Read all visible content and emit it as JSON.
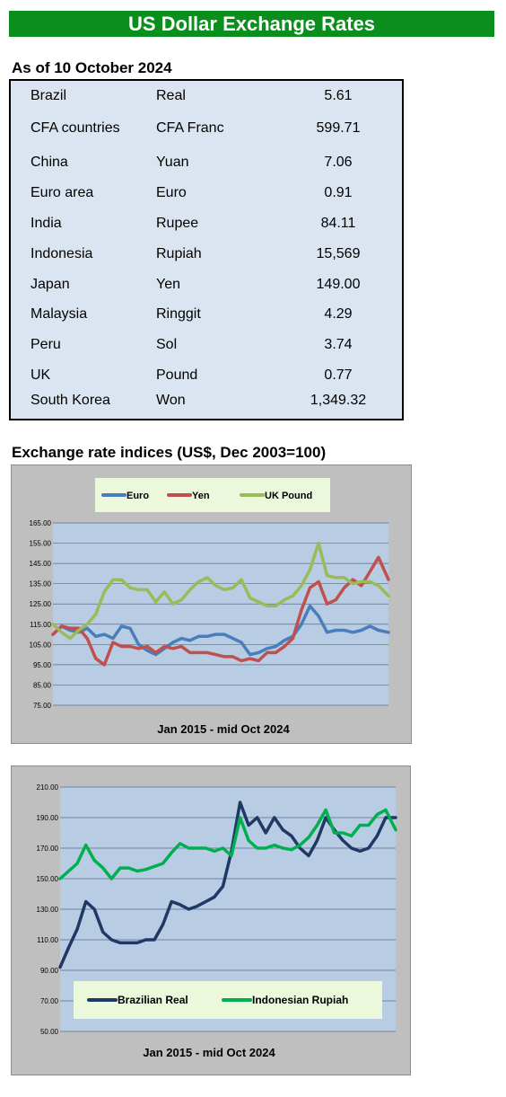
{
  "header": {
    "title": "US Dollar Exchange Rates"
  },
  "rates_section": {
    "as_of": "As of 10 October 2024",
    "rows": [
      {
        "country": "Brazil",
        "currency": "Real",
        "rate": "5.61"
      },
      {
        "country": "CFA countries",
        "currency": "CFA Franc",
        "rate": "599.71"
      },
      {
        "country": "China",
        "currency": "Yuan",
        "rate": "7.06"
      },
      {
        "country": "Euro area",
        "currency": "Euro",
        "rate": "0.91"
      },
      {
        "country": "India",
        "currency": "Rupee",
        "rate": "84.11"
      },
      {
        "country": "Indonesia",
        "currency": "Rupiah",
        "rate": "15,569"
      },
      {
        "country": "Japan",
        "currency": "Yen",
        "rate": "149.00"
      },
      {
        "country": "Malaysia",
        "currency": "Ringgit",
        "rate": "4.29"
      },
      {
        "country": "Peru",
        "currency": "Sol",
        "rate": "3.74"
      },
      {
        "country": "UK",
        "currency": "Pound",
        "rate": "0.77"
      },
      {
        "country": "South Korea",
        "currency": "Won",
        "rate": "1,349.32"
      }
    ]
  },
  "indices_section": {
    "title": "Exchange rate indices (US$, Dec 2003=100)"
  },
  "colors": {
    "banner": "#0a8f1e",
    "table_bg": "#dbe5f1",
    "panel_bg": "#bfbfbf",
    "plot_bg": "#b8cce4",
    "legend_bg": "#ebf8dc",
    "euro": "#4a7ebb",
    "yen": "#c0504d",
    "pound": "#9bbb59",
    "real": "#1f3864",
    "rupiah": "#00b050"
  },
  "chart_data": [
    {
      "type": "line",
      "xlabel": "Jan 2015 -  mid Oct 2024",
      "ylim": [
        75,
        165
      ],
      "yticks": [
        "75.00",
        "85.00",
        "95.00",
        "105.00",
        "115.00",
        "125.00",
        "135.00",
        "145.00",
        "155.00",
        "165.00"
      ],
      "grid": true,
      "legend": "top",
      "x": [
        2015.0,
        2015.25,
        2015.5,
        2015.75,
        2016.0,
        2016.25,
        2016.5,
        2016.75,
        2017.0,
        2017.25,
        2017.5,
        2017.75,
        2018.0,
        2018.25,
        2018.5,
        2018.75,
        2019.0,
        2019.25,
        2019.5,
        2019.75,
        2020.0,
        2020.25,
        2020.5,
        2020.75,
        2021.0,
        2021.25,
        2021.5,
        2021.75,
        2022.0,
        2022.25,
        2022.5,
        2022.75,
        2023.0,
        2023.25,
        2023.5,
        2023.75,
        2024.0,
        2024.25,
        2024.5,
        2024.79
      ],
      "series": [
        {
          "name": "Euro",
          "color": "#4a7ebb",
          "values": [
            110,
            114,
            112,
            111,
            113,
            109,
            110,
            108,
            114,
            113,
            105,
            102,
            100,
            103,
            106,
            108,
            107,
            109,
            109,
            110,
            110,
            108,
            106,
            100,
            101,
            103,
            104,
            107,
            109,
            115,
            124,
            119,
            111,
            112,
            112,
            111,
            112,
            114,
            112,
            111
          ]
        },
        {
          "name": "Yen",
          "color": "#c0504d",
          "values": [
            110,
            114,
            113,
            113,
            108,
            98,
            95,
            106,
            104,
            104,
            103,
            104,
            101,
            104,
            103,
            104,
            101,
            101,
            101,
            100,
            99,
            99,
            97,
            98,
            97,
            101,
            101,
            104,
            108,
            122,
            133,
            136,
            125,
            127,
            133,
            137,
            134,
            141,
            148,
            137
          ]
        },
        {
          "name": "UK Pound",
          "color": "#9bbb59",
          "values": [
            115,
            111,
            108,
            112,
            115,
            120,
            131,
            137,
            137,
            133,
            132,
            132,
            126,
            131,
            125,
            127,
            132,
            136,
            138,
            134,
            132,
            133,
            137,
            128,
            126,
            124,
            124,
            127,
            129,
            134,
            142,
            155,
            139,
            138,
            138,
            135,
            136,
            136,
            134,
            129
          ]
        }
      ]
    },
    {
      "type": "line",
      "xlabel": "Jan 2015 - mid Oct 2024",
      "ylim": [
        50,
        210
      ],
      "yticks": [
        "50.00",
        "70.00",
        "90.00",
        "110.00",
        "130.00",
        "150.00",
        "170.00",
        "190.00",
        "210.00"
      ],
      "grid": true,
      "legend": "bottom",
      "x": [
        2015.0,
        2015.25,
        2015.5,
        2015.75,
        2016.0,
        2016.25,
        2016.5,
        2016.75,
        2017.0,
        2017.25,
        2017.5,
        2017.75,
        2018.0,
        2018.25,
        2018.5,
        2018.75,
        2019.0,
        2019.25,
        2019.5,
        2019.75,
        2020.0,
        2020.25,
        2020.5,
        2020.75,
        2021.0,
        2021.25,
        2021.5,
        2021.75,
        2022.0,
        2022.25,
        2022.5,
        2022.75,
        2023.0,
        2023.25,
        2023.5,
        2023.75,
        2024.0,
        2024.25,
        2024.5,
        2024.79
      ],
      "series": [
        {
          "name": "Brazilian Real",
          "color": "#1f3864",
          "values": [
            92,
            105,
            117,
            135,
            130,
            115,
            110,
            108,
            108,
            108,
            110,
            110,
            120,
            135,
            133,
            130,
            132,
            135,
            138,
            145,
            168,
            200,
            185,
            190,
            180,
            190,
            182,
            178,
            170,
            165,
            175,
            190,
            182,
            175,
            170,
            168,
            170,
            178,
            190,
            190
          ]
        },
        {
          "name": "Indonesian Rupiah",
          "color": "#00b050",
          "values": [
            150,
            155,
            160,
            172,
            162,
            157,
            150,
            157,
            157,
            155,
            156,
            158,
            160,
            167,
            173,
            170,
            170,
            170,
            168,
            170,
            165,
            190,
            175,
            170,
            170,
            172,
            170,
            169,
            172,
            177,
            185,
            195,
            180,
            180,
            178,
            185,
            185,
            192,
            195,
            182
          ]
        }
      ]
    }
  ]
}
